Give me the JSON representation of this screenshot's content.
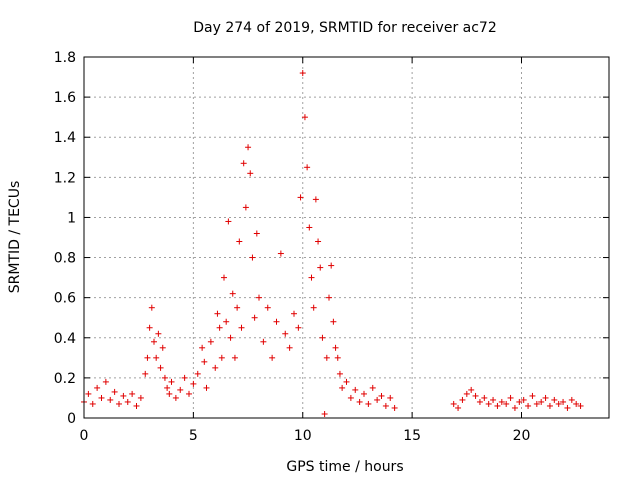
{
  "chart_data": {
    "type": "scatter",
    "title": "Day 274 of 2019, SRMTID for receiver ac72",
    "xlabel": "GPS time / hours",
    "ylabel": "SRMTID / TECUs",
    "xlim": [
      0,
      24
    ],
    "ylim": [
      0,
      1.8
    ],
    "xticks": [
      0,
      5,
      10,
      15,
      20
    ],
    "xtick_labels": [
      "0",
      "5",
      "10",
      "15",
      "20"
    ],
    "yticks": [
      0,
      0.2,
      0.4,
      0.6,
      0.8,
      1.0,
      1.2,
      1.4,
      1.6,
      1.8
    ],
    "ytick_labels": [
      "0",
      "0.2",
      "0.4",
      "0.6",
      "0.8",
      "1",
      "1.2",
      "1.4",
      "1.6",
      "1.8"
    ],
    "grid": true,
    "marker": "+",
    "color": "#e00000",
    "series": [
      {
        "name": "SRMTID",
        "points": [
          [
            0.0,
            0.08
          ],
          [
            0.2,
            0.12
          ],
          [
            0.4,
            0.07
          ],
          [
            0.6,
            0.15
          ],
          [
            0.8,
            0.1
          ],
          [
            1.0,
            0.18
          ],
          [
            1.2,
            0.09
          ],
          [
            1.4,
            0.13
          ],
          [
            1.6,
            0.07
          ],
          [
            1.8,
            0.11
          ],
          [
            2.0,
            0.08
          ],
          [
            2.2,
            0.12
          ],
          [
            2.4,
            0.06
          ],
          [
            2.6,
            0.1
          ],
          [
            2.8,
            0.22
          ],
          [
            2.9,
            0.3
          ],
          [
            3.0,
            0.45
          ],
          [
            3.1,
            0.55
          ],
          [
            3.2,
            0.38
          ],
          [
            3.3,
            0.3
          ],
          [
            3.4,
            0.42
          ],
          [
            3.5,
            0.25
          ],
          [
            3.6,
            0.35
          ],
          [
            3.7,
            0.2
          ],
          [
            3.8,
            0.15
          ],
          [
            3.9,
            0.12
          ],
          [
            4.0,
            0.18
          ],
          [
            4.2,
            0.1
          ],
          [
            4.4,
            0.14
          ],
          [
            4.6,
            0.2
          ],
          [
            4.8,
            0.12
          ],
          [
            5.0,
            0.17
          ],
          [
            5.2,
            0.22
          ],
          [
            5.4,
            0.35
          ],
          [
            5.5,
            0.28
          ],
          [
            5.6,
            0.15
          ],
          [
            5.8,
            0.38
          ],
          [
            6.0,
            0.25
          ],
          [
            6.1,
            0.52
          ],
          [
            6.2,
            0.45
          ],
          [
            6.3,
            0.3
          ],
          [
            6.4,
            0.7
          ],
          [
            6.5,
            0.48
          ],
          [
            6.6,
            0.98
          ],
          [
            6.7,
            0.4
          ],
          [
            6.8,
            0.62
          ],
          [
            6.9,
            0.3
          ],
          [
            7.0,
            0.55
          ],
          [
            7.1,
            0.88
          ],
          [
            7.2,
            0.45
          ],
          [
            7.3,
            1.27
          ],
          [
            7.4,
            1.05
          ],
          [
            7.5,
            1.35
          ],
          [
            7.6,
            1.22
          ],
          [
            7.7,
            0.8
          ],
          [
            7.8,
            0.5
          ],
          [
            7.9,
            0.92
          ],
          [
            8.0,
            0.6
          ],
          [
            8.2,
            0.38
          ],
          [
            8.4,
            0.55
          ],
          [
            8.6,
            0.3
          ],
          [
            8.8,
            0.48
          ],
          [
            9.0,
            0.82
          ],
          [
            9.2,
            0.42
          ],
          [
            9.4,
            0.35
          ],
          [
            9.6,
            0.52
          ],
          [
            9.8,
            0.45
          ],
          [
            9.9,
            1.1
          ],
          [
            10.0,
            1.72
          ],
          [
            10.1,
            1.5
          ],
          [
            10.2,
            1.25
          ],
          [
            10.3,
            0.95
          ],
          [
            10.4,
            0.7
          ],
          [
            10.5,
            0.55
          ],
          [
            10.6,
            1.09
          ],
          [
            10.7,
            0.88
          ],
          [
            10.8,
            0.75
          ],
          [
            10.9,
            0.4
          ],
          [
            11.0,
            0.02
          ],
          [
            11.1,
            0.3
          ],
          [
            11.2,
            0.6
          ],
          [
            11.3,
            0.76
          ],
          [
            11.4,
            0.48
          ],
          [
            11.5,
            0.35
          ],
          [
            11.6,
            0.3
          ],
          [
            11.7,
            0.22
          ],
          [
            11.8,
            0.15
          ],
          [
            12.0,
            0.18
          ],
          [
            12.2,
            0.1
          ],
          [
            12.4,
            0.14
          ],
          [
            12.6,
            0.08
          ],
          [
            12.8,
            0.12
          ],
          [
            13.0,
            0.07
          ],
          [
            13.2,
            0.15
          ],
          [
            13.4,
            0.09
          ],
          [
            13.6,
            0.11
          ],
          [
            13.8,
            0.06
          ],
          [
            14.0,
            0.1
          ],
          [
            14.2,
            0.05
          ],
          [
            16.9,
            0.07
          ],
          [
            17.1,
            0.05
          ],
          [
            17.3,
            0.09
          ],
          [
            17.5,
            0.12
          ],
          [
            17.7,
            0.14
          ],
          [
            17.9,
            0.11
          ],
          [
            18.1,
            0.08
          ],
          [
            18.3,
            0.1
          ],
          [
            18.5,
            0.07
          ],
          [
            18.7,
            0.09
          ],
          [
            18.9,
            0.06
          ],
          [
            19.1,
            0.08
          ],
          [
            19.3,
            0.07
          ],
          [
            19.5,
            0.1
          ],
          [
            19.7,
            0.05
          ],
          [
            19.9,
            0.08
          ],
          [
            20.1,
            0.09
          ],
          [
            20.3,
            0.06
          ],
          [
            20.5,
            0.11
          ],
          [
            20.7,
            0.07
          ],
          [
            20.9,
            0.08
          ],
          [
            21.1,
            0.1
          ],
          [
            21.3,
            0.06
          ],
          [
            21.5,
            0.09
          ],
          [
            21.7,
            0.07
          ],
          [
            21.9,
            0.08
          ],
          [
            22.1,
            0.05
          ],
          [
            22.3,
            0.09
          ],
          [
            22.5,
            0.07
          ],
          [
            22.7,
            0.06
          ]
        ]
      }
    ]
  }
}
